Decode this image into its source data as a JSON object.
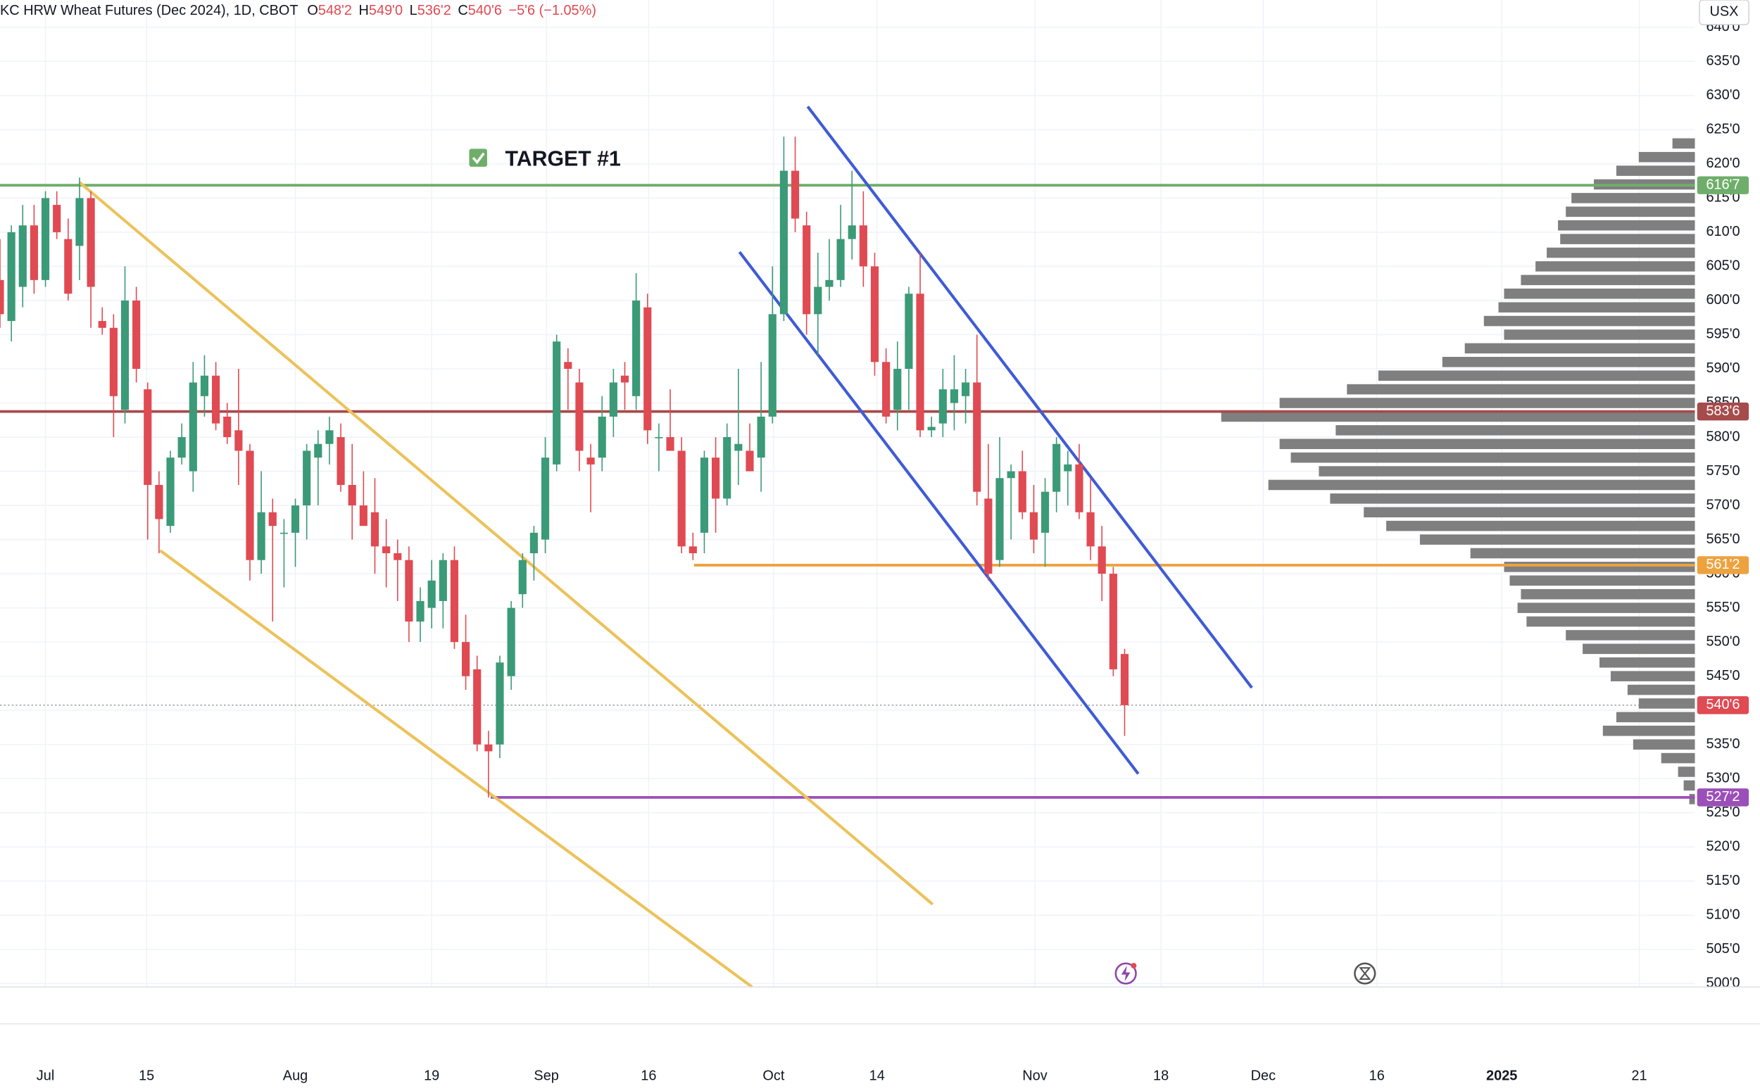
{
  "chart_data": {
    "type": "candlestick",
    "header": {
      "title": "KC HRW Wheat Futures (Dec 2024), 1D, CBOT",
      "ohlc": [
        {
          "key": "O",
          "value": "548'2"
        },
        {
          "key": "H",
          "value": "549'0"
        },
        {
          "key": "L",
          "value": "536'2"
        },
        {
          "key": "C",
          "value": "540'6"
        }
      ],
      "change": "−5'6 (−1.05%)"
    },
    "currency": "USX",
    "annotation": "TARGET #1",
    "series": [
      {
        "name": "KC HRW Wheat Futures (Dec 2024)",
        "up_color": "#3b9a78",
        "down_color": "#e04a52",
        "open": [
          603,
          597,
          602,
          611,
          603,
          614,
          609,
          608,
          615,
          597,
          596,
          584,
          600,
          587,
          573,
          567,
          577,
          575,
          586,
          589,
          583,
          581,
          578,
          562,
          569,
          566,
          566,
          570,
          577,
          579,
          580,
          573,
          570,
          569,
          564,
          563,
          562,
          553,
          555,
          556,
          562,
          550,
          546,
          535,
          535,
          545,
          557,
          563,
          565,
          576,
          591,
          588,
          577,
          577,
          583,
          589,
          586,
          599,
          580,
          580,
          578,
          564,
          566,
          577,
          571,
          578,
          578,
          577,
          583,
          598,
          619,
          611,
          598,
          602,
          603,
          609,
          611,
          605,
          591,
          584,
          590,
          601,
          581,
          582,
          585,
          586,
          588,
          571,
          562,
          574,
          575,
          569,
          566,
          572,
          575,
          576,
          569,
          564,
          560,
          548.25
        ],
        "high": [
          609,
          611,
          614,
          614,
          616,
          616,
          612,
          618,
          616,
          599,
          598,
          605,
          602,
          588,
          575,
          578,
          582,
          591,
          592,
          591,
          585,
          590,
          579,
          575,
          571,
          568,
          571,
          579,
          581,
          583,
          582,
          579,
          575,
          574,
          568,
          565,
          564,
          558,
          562,
          563,
          564,
          554,
          548,
          537,
          548,
          556,
          563,
          567,
          580,
          595,
          593,
          590,
          579,
          586,
          590,
          591,
          604,
          601,
          582,
          587,
          580,
          566,
          578,
          580,
          582,
          590,
          582,
          591,
          605,
          624,
          624,
          613,
          607,
          609,
          614,
          619,
          616,
          607,
          593,
          594,
          602,
          607,
          583,
          590,
          592,
          590,
          595,
          579,
          580,
          576,
          578,
          573,
          574,
          580,
          578,
          579,
          574,
          567,
          561,
          549
        ],
        "low": [
          596,
          594,
          599,
          601,
          602,
          609,
          600,
          603,
          596,
          595,
          580,
          582,
          588,
          565,
          563,
          566,
          576,
          572,
          583,
          581,
          579,
          573,
          559,
          560,
          553,
          558,
          561,
          565,
          570,
          576,
          572,
          565,
          567,
          560,
          558,
          556,
          550,
          550,
          552,
          552,
          549,
          543,
          534,
          527.25,
          533,
          543,
          555,
          559,
          563,
          575,
          584,
          575,
          569,
          575,
          580,
          584,
          584,
          579,
          575,
          578,
          563,
          562,
          563,
          566,
          570,
          573,
          575,
          572,
          582,
          597,
          610,
          595,
          592,
          600,
          602,
          606,
          602,
          589,
          582,
          581,
          584,
          580,
          580,
          580,
          581,
          582,
          570,
          559,
          561,
          565,
          568,
          563,
          561,
          569,
          570,
          568,
          562,
          556,
          545,
          536.25
        ],
        "close": [
          598,
          610,
          611,
          603,
          615,
          610,
          601,
          615,
          602,
          596,
          586,
          600,
          590,
          573,
          568,
          577,
          580,
          588,
          589,
          582,
          580,
          578,
          562,
          569,
          567,
          566,
          570,
          578,
          579,
          581,
          573,
          570,
          567,
          564,
          563,
          562,
          553,
          556,
          559,
          562,
          550,
          545,
          535,
          534,
          547,
          555,
          562,
          566,
          577,
          594,
          590,
          578,
          576,
          583,
          588,
          588,
          600,
          581,
          580,
          578,
          564,
          563,
          577,
          571,
          580,
          579,
          575,
          583,
          598,
          619,
          612,
          598,
          602,
          603,
          609,
          611,
          605,
          591,
          583,
          590,
          601,
          581,
          581.5,
          587,
          587,
          588,
          572,
          560,
          574,
          575,
          569,
          565,
          572,
          579,
          576,
          569,
          564,
          560,
          546,
          540.75
        ]
      }
    ],
    "xlim": [
      0,
      149.2
    ],
    "xticks": [
      {
        "value": 4,
        "label": "Jul"
      },
      {
        "value": 12.9,
        "label": "15"
      },
      {
        "value": 26,
        "label": "Aug"
      },
      {
        "value": 38,
        "label": "19"
      },
      {
        "value": 48.1,
        "label": "Sep"
      },
      {
        "value": 57.1,
        "label": "16"
      },
      {
        "value": 68.1,
        "label": "Oct"
      },
      {
        "value": 77.2,
        "label": "14"
      },
      {
        "value": 91.1,
        "label": "Nov"
      },
      {
        "value": 102.2,
        "label": "18"
      },
      {
        "value": 111.2,
        "label": "Dec"
      },
      {
        "value": 121.2,
        "label": "16"
      },
      {
        "value": 132.2,
        "label": "2025"
      },
      {
        "value": 144.3,
        "label": "21"
      }
    ],
    "ylim": [
      499.5,
      644
    ],
    "yticks": [
      {
        "value": 500,
        "label": "500'0"
      },
      {
        "value": 505,
        "label": "505'0"
      },
      {
        "value": 510,
        "label": "510'0"
      },
      {
        "value": 515,
        "label": "515'0"
      },
      {
        "value": 520,
        "label": "520'0"
      },
      {
        "value": 525,
        "label": "525'0"
      },
      {
        "value": 530,
        "label": "530'0"
      },
      {
        "value": 535,
        "label": "535'0"
      },
      {
        "value": 540,
        "label": "540'0"
      },
      {
        "value": 545,
        "label": "545'0"
      },
      {
        "value": 550,
        "label": "550'0"
      },
      {
        "value": 555,
        "label": "555'0"
      },
      {
        "value": 560,
        "label": "560'0"
      },
      {
        "value": 565,
        "label": "565'0"
      },
      {
        "value": 570,
        "label": "570'0"
      },
      {
        "value": 575,
        "label": "575'0"
      },
      {
        "value": 580,
        "label": "580'0"
      },
      {
        "value": 585,
        "label": "585'0"
      },
      {
        "value": 590,
        "label": "590'0"
      },
      {
        "value": 595,
        "label": "595'0"
      },
      {
        "value": 600,
        "label": "600'0"
      },
      {
        "value": 605,
        "label": "605'0"
      },
      {
        "value": 610,
        "label": "610'0"
      },
      {
        "value": 615,
        "label": "615'0"
      },
      {
        "value": 620,
        "label": "620'0"
      },
      {
        "value": 625,
        "label": "625'0"
      },
      {
        "value": 630,
        "label": "630'0"
      },
      {
        "value": 635,
        "label": "635'0"
      },
      {
        "value": 640,
        "label": "640'0"
      }
    ],
    "grid": true,
    "levels": [
      {
        "value": 616.875,
        "label": "616'7",
        "color": "#6fae6a",
        "start": 0
      },
      {
        "value": 583.75,
        "label": "583'6",
        "color": "#a64b4b",
        "start": 0
      },
      {
        "value": 561.25,
        "label": "561'2",
        "color": "#eda23f",
        "start": 61.1
      },
      {
        "value": 527.25,
        "label": "527'2",
        "color": "#9b4fb8",
        "start": 43.2
      },
      {
        "value": 540.75,
        "label": "540'6",
        "color": "#e04a52",
        "start": 0,
        "dotted": true
      }
    ],
    "trendlines": [
      {
        "color": "#ecc25a",
        "x": [
          7,
          82.1
        ],
        "y": [
          617.3,
          511.6
        ]
      },
      {
        "color": "#ecc25a",
        "x": [
          14.1,
          66.2
        ],
        "y": [
          563.4,
          499.5
        ]
      },
      {
        "color": "#3f5bd6",
        "x": [
          71.1,
          110.2
        ],
        "y": [
          628.4,
          543.3
        ]
      },
      {
        "color": "#3f5bd6",
        "x": [
          65.1,
          100.2
        ],
        "y": [
          607.1,
          530.7
        ]
      }
    ],
    "volume_profile": {
      "color": "#7f7f7f",
      "prices": [
        527,
        529,
        531,
        533,
        535,
        537,
        539,
        541,
        543,
        545,
        547,
        549,
        551,
        553,
        555,
        557,
        559,
        561,
        563,
        565,
        567,
        569,
        571,
        573,
        575,
        577,
        579,
        581,
        583,
        585,
        587,
        589,
        591,
        593,
        595,
        597,
        599,
        601,
        603,
        605,
        607,
        609,
        611,
        613,
        615,
        617,
        619,
        621,
        623
      ],
      "volumes": [
        5,
        10,
        15,
        30,
        55,
        82,
        70,
        50,
        60,
        75,
        85,
        100,
        115,
        150,
        158,
        155,
        165,
        170,
        200,
        245,
        275,
        295,
        325,
        380,
        335,
        360,
        370,
        320,
        422,
        370,
        310,
        282,
        225,
        205,
        170,
        188,
        175,
        170,
        155,
        142,
        132,
        120,
        122,
        115,
        110,
        90,
        70,
        50,
        20
      ]
    }
  }
}
